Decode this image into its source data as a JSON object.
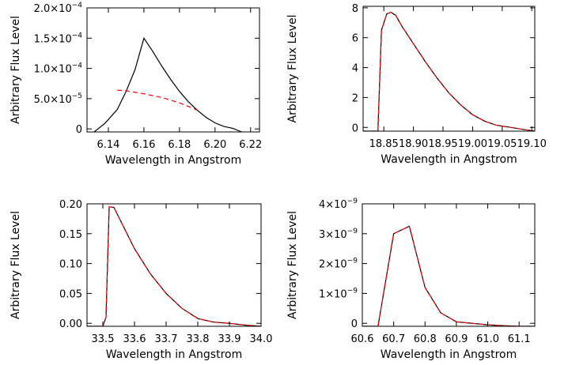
{
  "chart_data": [
    {
      "type": "line",
      "xlabel": "Wavelength in Angstrom",
      "ylabel": "Arbitrary Flux Level",
      "xlim": [
        6.128,
        6.225
      ],
      "ylim": [
        -5e-06,
        0.0002
      ],
      "x_ticks": [
        {
          "v": 6.14,
          "label": "6.14"
        },
        {
          "v": 6.16,
          "label": "6.16"
        },
        {
          "v": 6.18,
          "label": "6.18"
        },
        {
          "v": 6.2,
          "label": "6.20"
        },
        {
          "v": 6.22,
          "label": "6.22"
        }
      ],
      "y_ticks": [
        {
          "v": 0,
          "label": "0",
          "exp": ""
        },
        {
          "v": 5e-05,
          "label": "5.0×10",
          "exp": "−5"
        },
        {
          "v": 0.0001,
          "label": "1.0×10",
          "exp": "−4"
        },
        {
          "v": 0.00015,
          "label": "1.5×10",
          "exp": "−4"
        },
        {
          "v": 0.0002,
          "label": "2.0×10",
          "exp": "−4"
        }
      ],
      "series": [
        {
          "color": "#000000",
          "dash": "",
          "x": [
            6.132,
            6.138,
            6.145,
            6.15,
            6.155,
            6.16,
            6.165,
            6.17,
            6.175,
            6.18,
            6.185,
            6.19,
            6.195,
            6.2,
            6.205,
            6.21,
            6.215
          ],
          "y": [
            -5e-06,
            9e-06,
            3.2e-05,
            6.2e-05,
            9.8e-05,
            0.00015,
            0.000128,
            0.000104,
            8.2e-05,
            6.2e-05,
            4.5e-05,
            3.1e-05,
            1.9e-05,
            1e-05,
            4e-06,
            1e-06,
            -5e-06
          ]
        },
        {
          "color": "#ff0000",
          "dash": "6,4",
          "x": [
            6.145,
            6.15,
            6.16,
            6.17,
            6.18,
            6.185,
            6.19
          ],
          "y": [
            6.4e-05,
            6.3e-05,
            5.8e-05,
            5.2e-05,
            4.3e-05,
            3.7e-05,
            3.1e-05
          ]
        }
      ]
    },
    {
      "type": "line",
      "xlabel": "Wavelength in Angstrom",
      "ylabel": "Arbitrary Flux Level",
      "xlim": [
        18.815,
        19.105
      ],
      "ylim": [
        -0.25,
        8.1
      ],
      "x_ticks": [
        {
          "v": 18.85,
          "label": "18.85"
        },
        {
          "v": 18.9,
          "label": "18.90"
        },
        {
          "v": 18.95,
          "label": "18.95"
        },
        {
          "v": 19.0,
          "label": "19.00"
        },
        {
          "v": 19.05,
          "label": "19.05"
        },
        {
          "v": 19.1,
          "label": "19.10"
        }
      ],
      "y_ticks": [
        {
          "v": 0,
          "label": "0",
          "exp": ""
        },
        {
          "v": 2,
          "label": "2",
          "exp": ""
        },
        {
          "v": 4,
          "label": "4",
          "exp": ""
        },
        {
          "v": 6,
          "label": "6",
          "exp": ""
        },
        {
          "v": 8,
          "label": "8",
          "exp": ""
        }
      ],
      "series": [
        {
          "color": "#000000",
          "dash": "",
          "x": [
            18.815,
            18.84,
            18.846,
            18.855,
            18.862,
            18.87,
            18.88,
            18.9,
            18.92,
            18.94,
            18.96,
            18.98,
            19.0,
            19.02,
            19.04,
            19.06,
            19.08,
            19.105
          ],
          "y": [
            -0.25,
            -0.25,
            6.5,
            7.6,
            7.7,
            7.5,
            6.8,
            5.6,
            4.4,
            3.3,
            2.3,
            1.5,
            0.85,
            0.42,
            0.15,
            0.03,
            -0.1,
            -0.25
          ]
        },
        {
          "color": "#ff0000",
          "dash": "6,4",
          "x": [
            18.815,
            18.84,
            18.846,
            18.855,
            18.862,
            18.87,
            18.88,
            18.9,
            18.92,
            18.94,
            18.96,
            18.98,
            19.0,
            19.02,
            19.04,
            19.06,
            19.08,
            19.105
          ],
          "y": [
            -0.25,
            -0.25,
            6.5,
            7.6,
            7.7,
            7.5,
            6.8,
            5.6,
            4.4,
            3.3,
            2.3,
            1.5,
            0.85,
            0.42,
            0.15,
            0.03,
            -0.1,
            -0.25
          ]
        }
      ]
    },
    {
      "type": "line",
      "xlabel": "Wavelength in Angstrom",
      "ylabel": "Arbitrary Flux Level",
      "xlim": [
        33.45,
        34.0
      ],
      "ylim": [
        -0.005,
        0.2
      ],
      "x_ticks": [
        {
          "v": 33.5,
          "label": "33.5"
        },
        {
          "v": 33.6,
          "label": "33.6"
        },
        {
          "v": 33.7,
          "label": "33.7"
        },
        {
          "v": 33.8,
          "label": "33.8"
        },
        {
          "v": 33.9,
          "label": "33.9"
        },
        {
          "v": 34.0,
          "label": "34.0"
        }
      ],
      "y_ticks": [
        {
          "v": 0,
          "label": "0.00",
          "exp": ""
        },
        {
          "v": 0.05,
          "label": "0.05",
          "exp": ""
        },
        {
          "v": 0.1,
          "label": "0.10",
          "exp": ""
        },
        {
          "v": 0.15,
          "label": "0.15",
          "exp": ""
        },
        {
          "v": 0.2,
          "label": "0.20",
          "exp": ""
        }
      ],
      "series": [
        {
          "color": "#000000",
          "dash": "",
          "x": [
            33.45,
            33.5,
            33.51,
            33.52,
            33.535,
            33.55,
            33.6,
            33.65,
            33.7,
            33.75,
            33.8,
            33.85,
            33.9,
            33.95,
            34.0
          ],
          "y": [
            -0.005,
            -0.005,
            0.01,
            0.195,
            0.194,
            0.178,
            0.125,
            0.083,
            0.05,
            0.025,
            0.008,
            0.002,
            0.0,
            -0.003,
            -0.005
          ]
        },
        {
          "color": "#ff0000",
          "dash": "6,4",
          "x": [
            33.45,
            33.5,
            33.51,
            33.52,
            33.535,
            33.55,
            33.6,
            33.65,
            33.7,
            33.75,
            33.8,
            33.85,
            33.9,
            33.95,
            34.0
          ],
          "y": [
            -0.005,
            -0.005,
            0.01,
            0.195,
            0.194,
            0.178,
            0.125,
            0.083,
            0.05,
            0.025,
            0.008,
            0.002,
            0.0,
            -0.003,
            -0.005
          ]
        }
      ]
    },
    {
      "type": "line",
      "xlabel": "Wavelength in Angstrom",
      "ylabel": "Arbitrary Flux Level",
      "xlim": [
        60.6,
        61.15
      ],
      "ylim": [
        -1e-10,
        4e-09
      ],
      "x_ticks": [
        {
          "v": 60.6,
          "label": "60.6"
        },
        {
          "v": 60.7,
          "label": "60.7"
        },
        {
          "v": 60.8,
          "label": "60.8"
        },
        {
          "v": 60.9,
          "label": "60.9"
        },
        {
          "v": 61.0,
          "label": "61.0"
        },
        {
          "v": 61.1,
          "label": "61.1"
        }
      ],
      "y_ticks": [
        {
          "v": 0,
          "label": "0",
          "exp": ""
        },
        {
          "v": 1e-09,
          "label": "1×10",
          "exp": "−9"
        },
        {
          "v": 2e-09,
          "label": "2×10",
          "exp": "−9"
        },
        {
          "v": 3e-09,
          "label": "3×10",
          "exp": "−9"
        },
        {
          "v": 4e-09,
          "label": "4×10",
          "exp": "−9"
        }
      ],
      "series": [
        {
          "color": "#000000",
          "dash": "",
          "x": [
            60.6,
            60.65,
            60.7,
            60.75,
            60.8,
            60.85,
            60.9,
            60.95,
            61.0,
            61.05,
            61.1,
            61.15
          ],
          "y": [
            -1e-10,
            -1e-10,
            3e-09,
            3.25e-09,
            1.2e-09,
            3.5e-10,
            5e-11,
            0,
            -5e-11,
            -8e-11,
            -1e-10,
            -1e-10
          ]
        },
        {
          "color": "#ff0000",
          "dash": "6,4",
          "x": [
            60.6,
            60.65,
            60.7,
            60.75,
            60.8,
            60.85,
            60.9,
            60.95,
            61.0,
            61.05,
            61.1,
            61.15
          ],
          "y": [
            -1e-10,
            -1e-10,
            3e-09,
            3.25e-09,
            1.2e-09,
            3.5e-10,
            5e-11,
            0,
            -5e-11,
            -8e-11,
            -1e-10,
            -1e-10
          ]
        }
      ]
    }
  ]
}
